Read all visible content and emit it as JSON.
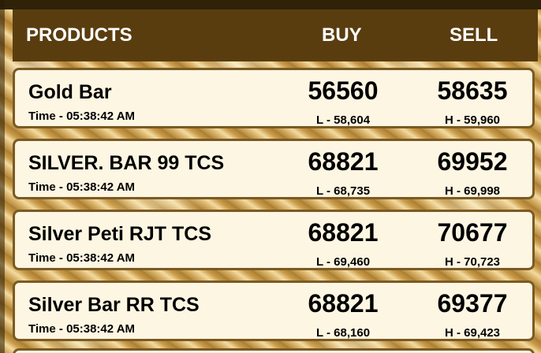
{
  "header": {
    "products_label": "PRODUCTS",
    "buy_label": "BUY",
    "sell_label": "SELL"
  },
  "products": [
    {
      "name": "Gold Bar",
      "time": "Time - 05:38:42 AM",
      "buy": "56560",
      "sell": "58635",
      "low": "L - 58,604",
      "high": "H - 59,960"
    },
    {
      "name": "SILVER. BAR 99 TCS",
      "time": "Time - 05:38:42 AM",
      "buy": "68821",
      "sell": "69952",
      "low": "L - 68,735",
      "high": "H - 69,998"
    },
    {
      "name": "Silver Peti RJT TCS",
      "time": "Time - 05:38:42 AM",
      "buy": "68821",
      "sell": "70677",
      "low": "L - 69,460",
      "high": "H - 70,723"
    },
    {
      "name": "Silver Bar RR TCS",
      "time": "Time - 05:38:42 AM",
      "buy": "68821",
      "sell": "69377",
      "low": "L - 68,160",
      "high": "H - 69,423"
    }
  ]
}
